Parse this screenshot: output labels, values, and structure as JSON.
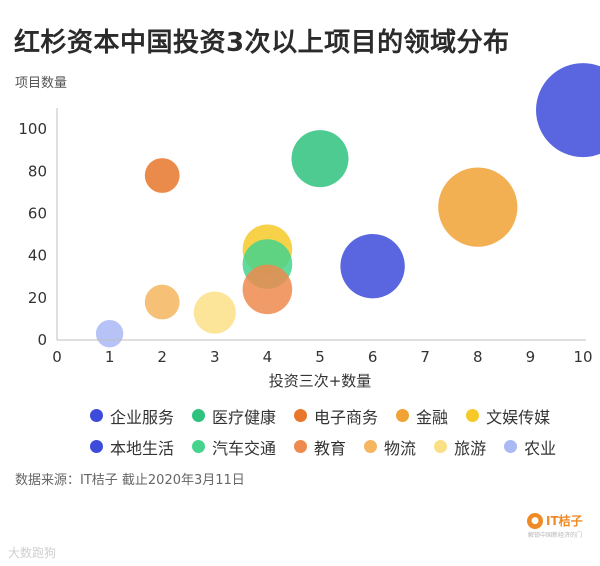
{
  "title": "红杉资本中国投资3次以上项目的领域分布",
  "source": "数据来源：IT桔子 截止2020年3月11日",
  "logo": {
    "icon": "orange-icon",
    "text": "IT桔子",
    "tagline": "解锁中国新经济的门"
  },
  "watermark": "大数跑狗",
  "chart_data": {
    "type": "scatter",
    "subtype": "bubble",
    "title": "红杉资本中国投资3次以上项目的领域分布",
    "xlabel": "投资三次+数量",
    "ylabel": "项目数量",
    "xlim": [
      0,
      10
    ],
    "ylim": [
      0,
      110
    ],
    "xticks": [
      0,
      1,
      2,
      3,
      4,
      5,
      6,
      7,
      8,
      9,
      10
    ],
    "yticks": [
      0,
      20,
      40,
      60,
      80,
      100
    ],
    "grid": false,
    "legend_position": "bottom",
    "series": [
      {
        "name": "企业服务",
        "x": 10,
        "y": 109,
        "size": 10,
        "color": "#3d4bdb"
      },
      {
        "name": "医疗健康",
        "x": 5,
        "y": 86,
        "size": 5,
        "color": "#2ec27e"
      },
      {
        "name": "电子商务",
        "x": 2,
        "y": 78,
        "size": 2,
        "color": "#e8772c"
      },
      {
        "name": "金融",
        "x": 8,
        "y": 63,
        "size": 8,
        "color": "#f0a235"
      },
      {
        "name": "文娱传媒",
        "x": 4,
        "y": 43,
        "size": 4,
        "color": "#f6c928"
      },
      {
        "name": "本地生活",
        "x": 6,
        "y": 35,
        "size": 6,
        "color": "#3d4bdb"
      },
      {
        "name": "汽车交通",
        "x": 4,
        "y": 36,
        "size": 4,
        "color": "#45d38d"
      },
      {
        "name": "教育",
        "x": 4,
        "y": 24,
        "size": 4,
        "color": "#ee8a4f"
      },
      {
        "name": "物流",
        "x": 2,
        "y": 18,
        "size": 2,
        "color": "#f6b55f"
      },
      {
        "name": "旅游",
        "x": 3,
        "y": 13,
        "size": 3,
        "color": "#fbdf86"
      },
      {
        "name": "农业",
        "x": 1,
        "y": 3,
        "size": 1,
        "color": "#aab8f4"
      }
    ],
    "draw_order": [
      "企业服务",
      "医疗健康",
      "电子商务",
      "金融",
      "本地生活",
      "物流",
      "旅游",
      "农业",
      "文娱传媒",
      "汽车交通",
      "教育"
    ],
    "legend_rows": [
      [
        "企业服务",
        "医疗健康",
        "电子商务",
        "金融",
        "文娱传媒"
      ],
      [
        "本地生活",
        "汽车交通",
        "教育",
        "物流",
        "旅游",
        "农业"
      ]
    ]
  }
}
